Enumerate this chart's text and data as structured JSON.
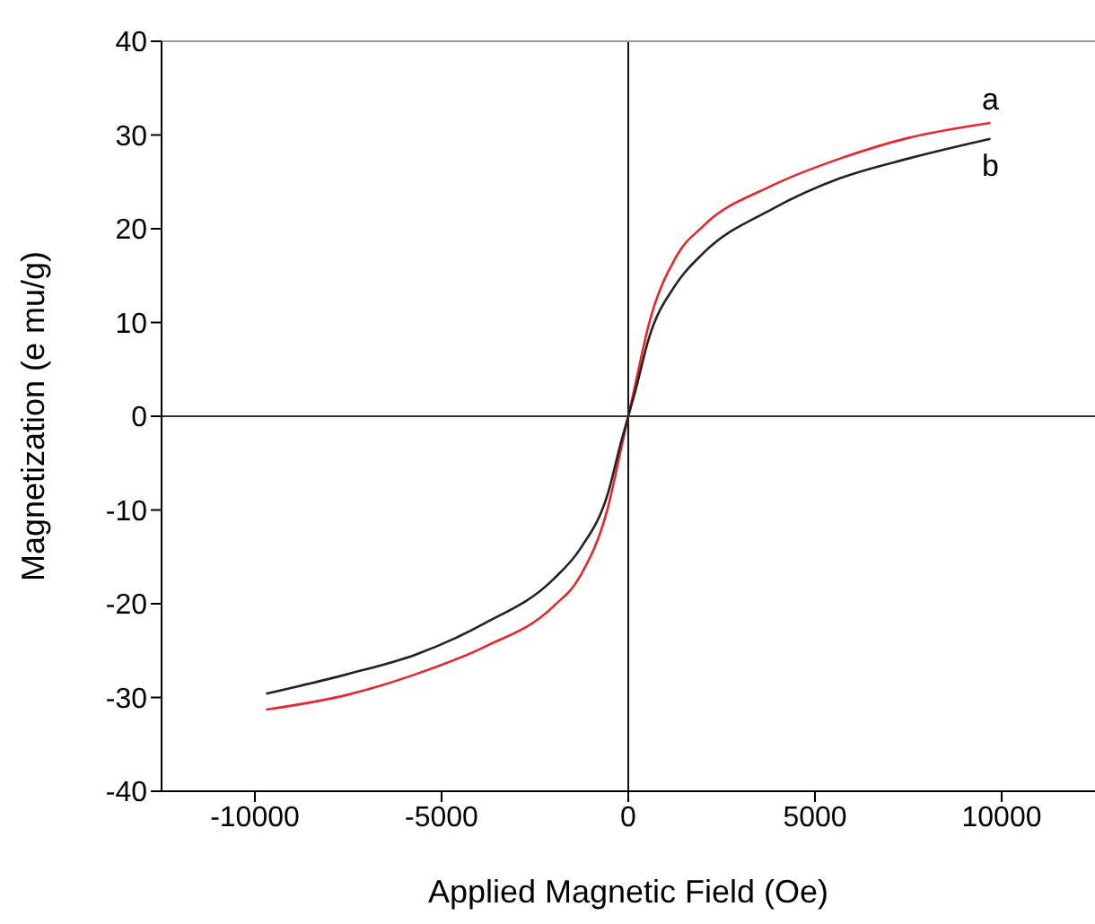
{
  "chart_data": {
    "type": "line",
    "xlabel": "Applied Magnetic Field (Oe)",
    "ylabel": "Magnetization (e mu/g)",
    "xlim": [
      -12500,
      12500
    ],
    "xticks": [
      -10000,
      -5000,
      0,
      5000,
      10000
    ],
    "ylim": [
      -40,
      40
    ],
    "yticks": [
      -40,
      -30,
      -20,
      -10,
      0,
      10,
      20,
      30,
      40
    ],
    "grid": false,
    "marker": "none",
    "line_style": "solid",
    "ref_lines": [
      {
        "axis": "x",
        "value": 0,
        "color": "#111111"
      },
      {
        "axis": "y",
        "value": 0,
        "color": "#333333"
      }
    ],
    "annotations": [
      {
        "text": "a",
        "x": 9700,
        "y": 31.2
      },
      {
        "text": "b",
        "x": 9700,
        "y": 29.5
      }
    ],
    "series": [
      {
        "color": "#e8262b",
        "x": [
          -9700,
          -7510,
          -5680,
          -3850,
          -2010,
          -1280,
          -550,
          -183,
          0,
          183,
          550,
          1280,
          2010,
          3850,
          5680,
          7510,
          9700
        ],
        "values": [
          -31.3,
          -29.7,
          -27.5,
          -24.6,
          -20.3,
          -17,
          -9.8,
          -3.3,
          0,
          3.3,
          9.8,
          17,
          20.3,
          24.6,
          27.5,
          29.7,
          31.3
        ]
      },
      {
        "color": "#222222",
        "x": [
          -9700,
          -7510,
          -5680,
          -3850,
          -2010,
          -1280,
          -550,
          -183,
          0,
          183,
          550,
          1280,
          2010,
          3850,
          5680,
          7510,
          9700
        ],
        "values": [
          -29.6,
          -27.5,
          -25.4,
          -22.1,
          -17.4,
          -14.1,
          -8.3,
          -2.6,
          0,
          2.6,
          8.3,
          14.1,
          17.4,
          22.1,
          25.4,
          27.5,
          29.6
        ]
      }
    ]
  }
}
